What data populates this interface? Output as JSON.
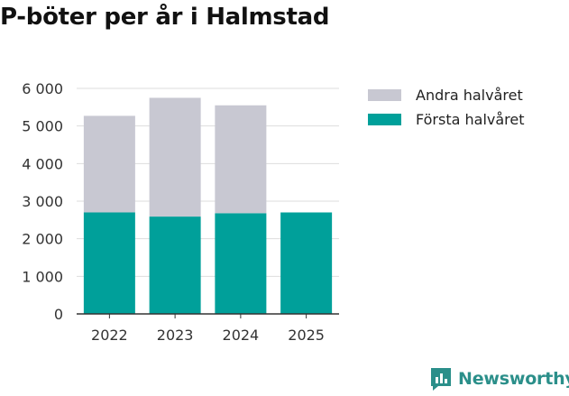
{
  "title": "P-böter per år i Halmstad",
  "brand": {
    "name": "Newsworthy",
    "icon": "newsworthy-logo-icon",
    "color": "#2b8f8a"
  },
  "chart_data": {
    "type": "bar",
    "stacked": true,
    "title": "P-böter per år i Halmstad",
    "categories": [
      "2022",
      "2023",
      "2024",
      "2025"
    ],
    "series": [
      {
        "name": "Första halvåret",
        "color": "#00a09a",
        "values": [
          2700,
          2590,
          2680,
          2700
        ]
      },
      {
        "name": "Andra halvåret",
        "color": "#c8c8d2",
        "values": [
          2570,
          3160,
          2870,
          0
        ]
      }
    ],
    "legend_order": [
      "Andra halvåret",
      "Första halvåret"
    ],
    "legend_position": "right",
    "xlabel": "",
    "ylabel": "",
    "ylim": [
      0,
      6000
    ],
    "yticks": [
      0,
      1000,
      2000,
      3000,
      4000,
      5000,
      6000
    ],
    "ytick_labels": [
      "0",
      "1 000",
      "2 000",
      "3 000",
      "4 000",
      "5 000",
      "6 000"
    ],
    "grid": true
  }
}
